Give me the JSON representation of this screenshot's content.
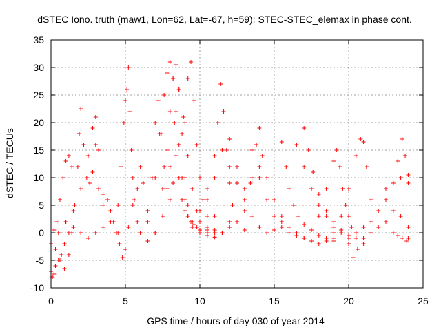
{
  "chart_data": {
    "type": "scatter",
    "title": "dSTEC Iono. truth (maw1, Lon=62, Lat=-67, h=59): STEC-STEC_elemax in phase cont.",
    "xlabel": "GPS time / hours of day 030 of year 2014",
    "ylabel": "dSTEC  / TECUs",
    "xlim": [
      0,
      25
    ],
    "ylim": [
      -10,
      35
    ],
    "xticks": [
      0,
      5,
      10,
      15,
      20,
      25
    ],
    "yticks": [
      -10,
      -5,
      0,
      5,
      10,
      15,
      20,
      25,
      30,
      35
    ],
    "xtick_labels": [
      "0",
      "5",
      "10",
      "15",
      "20",
      "25"
    ],
    "ytick_labels": [
      "-10",
      "-5",
      "0",
      "5",
      "10",
      "15",
      "20",
      "25",
      "30",
      "35"
    ],
    "grid": true,
    "marker": "+",
    "color": "#ff0000",
    "series": [
      {
        "x": [
          0.0,
          0.2,
          0.4,
          0.6,
          0.8,
          1.0,
          1.2,
          1.4
        ],
        "y": [
          -2.0,
          0.5,
          2.0,
          6.0,
          10.0,
          13.0,
          14.0,
          12.0
        ]
      },
      {
        "x": [
          0.0,
          0.1,
          0.2,
          0.3,
          0.5,
          0.7,
          0.9,
          1.2
        ],
        "y": [
          -7.0,
          -8.0,
          -7.5,
          -6.0,
          -5.0,
          -4.0,
          -2.0,
          0.0
        ]
      },
      {
        "x": [
          0.3,
          0.6,
          0.9,
          1.2,
          1.4,
          1.6,
          1.8,
          1.9,
          2.0,
          2.2,
          2.4,
          2.6,
          2.8,
          3.0
        ],
        "y": [
          -3.0,
          -5.0,
          -6.5,
          -4.0,
          0.0,
          5.0,
          12.0,
          18.0,
          22.5,
          16.0,
          10.0,
          9.0,
          11.0,
          16.0
        ]
      },
      {
        "x": [
          1.0,
          1.5,
          2.0,
          2.5,
          2.8,
          3.0,
          3.2,
          3.5
        ],
        "y": [
          2.0,
          4.0,
          8.0,
          14.0,
          19.0,
          21.0,
          15.0,
          5.0
        ]
      },
      {
        "x": [
          0.5,
          1.0,
          1.5,
          2.0,
          2.5,
          3.0,
          3.5,
          4.0,
          4.5
        ],
        "y": [
          0.0,
          2.0,
          1.0,
          0.0,
          -1.0,
          0.0,
          1.0,
          2.0,
          0.0
        ]
      },
      {
        "x": [
          3.2,
          3.5,
          3.8,
          4.0,
          4.2,
          4.4,
          4.6,
          4.8,
          5.0,
          5.2
        ],
        "y": [
          8.0,
          7.0,
          6.0,
          4.0,
          2.0,
          0.0,
          -2.0,
          -4.5,
          -3.0,
          1.0
        ]
      },
      {
        "x": [
          4.5,
          4.7,
          4.9,
          5.0,
          5.1,
          5.2,
          5.3,
          5.4,
          5.5,
          5.6,
          5.8,
          6.0,
          6.5,
          7.0,
          7.5
        ],
        "y": [
          5.0,
          12.0,
          20.0,
          24.0,
          26.0,
          30.0,
          22.0,
          15.0,
          10.0,
          6.0,
          2.0,
          0.0,
          -1.5,
          0.0,
          3.0
        ]
      },
      {
        "x": [
          5.5,
          5.8,
          6.0,
          6.2,
          6.5,
          7.0
        ],
        "y": [
          5.0,
          8.0,
          12.0,
          9.0,
          4.0,
          0.0
        ]
      },
      {
        "x": [
          6.5,
          6.8,
          7.0,
          7.2,
          7.4,
          7.6,
          7.8,
          8.0,
          8.2,
          8.4,
          8.6,
          8.8,
          9.0,
          9.2,
          9.4,
          9.6,
          9.8,
          10.0,
          10.5,
          11.0
        ],
        "y": [
          2.0,
          10.0,
          20.0,
          24.0,
          18.0,
          12.0,
          8.0,
          6.0,
          9.0,
          14.0,
          10.0,
          6.0,
          4.0,
          3.0,
          2.0,
          1.5,
          1.0,
          0.5,
          1.0,
          3.0
        ]
      },
      {
        "x": [
          7.0,
          7.3,
          7.6,
          7.8,
          8.0,
          8.2,
          8.4,
          8.6,
          8.8,
          9.0,
          9.2,
          9.5,
          10.0,
          10.5
        ],
        "y": [
          10.0,
          18.0,
          25.0,
          29.0,
          31.0,
          28.0,
          22.0,
          16.0,
          10.0,
          6.0,
          3.0,
          1.0,
          0.0,
          0.5
        ]
      },
      {
        "x": [
          7.5,
          7.8,
          8.0,
          8.2,
          8.4,
          8.6,
          8.8,
          9.0,
          9.2,
          9.5,
          10.0,
          10.5,
          11.0
        ],
        "y": [
          8.0,
          15.0,
          22.0,
          28.0,
          30.5,
          26.0,
          18.0,
          10.0,
          5.0,
          2.0,
          0.0,
          -0.5,
          0.0
        ]
      },
      {
        "x": [
          8.0,
          8.3,
          8.6,
          8.9,
          9.2,
          9.5,
          9.8,
          10.0,
          10.5,
          11.0,
          11.5,
          12.0
        ],
        "y": [
          12.0,
          20.0,
          26.0,
          21.0,
          14.0,
          8.0,
          4.0,
          2.0,
          0.0,
          -0.8,
          0.0,
          2.0
        ]
      },
      {
        "x": [
          9.0,
          9.2,
          9.4,
          9.6,
          9.8,
          10.0,
          10.2,
          10.5,
          11.0,
          11.5,
          12.0
        ],
        "y": [
          20.0,
          28.0,
          31.0,
          24.0,
          16.0,
          10.0,
          6.0,
          3.0,
          0.5,
          0.0,
          1.0
        ]
      },
      {
        "x": [
          10.0,
          10.5,
          11.0,
          11.2,
          11.4,
          11.6,
          11.8,
          12.0,
          12.2,
          12.5,
          13.0
        ],
        "y": [
          4.0,
          8.0,
          14.0,
          20.0,
          27.0,
          22.0,
          15.0,
          9.0,
          5.0,
          2.0,
          0.5
        ]
      },
      {
        "x": [
          10.5,
          11.0,
          11.5,
          12.0,
          12.5,
          13.0,
          13.5,
          14.0
        ],
        "y": [
          6.0,
          10.0,
          15.0,
          17.0,
          12.0,
          8.0,
          10.0,
          12.0
        ]
      },
      {
        "x": [
          12.0,
          12.5,
          13.0,
          13.5,
          14.0,
          14.5,
          15.0,
          15.5
        ],
        "y": [
          12.0,
          9.0,
          6.0,
          3.0,
          1.0,
          0.0,
          0.5,
          2.0
        ]
      },
      {
        "x": [
          13.0,
          13.4,
          13.8,
          14.0,
          14.2,
          14.5,
          15.0,
          15.5,
          16.0,
          16.5,
          17.0
        ],
        "y": [
          4.0,
          9.0,
          16.0,
          19.0,
          14.0,
          10.0,
          6.0,
          3.0,
          1.0,
          0.0,
          -1.0
        ]
      },
      {
        "x": [
          13.5,
          14.0,
          14.5,
          15.0,
          15.5,
          16.0,
          16.5,
          17.0,
          17.5,
          18.0,
          18.5,
          19.0
        ],
        "y": [
          15.0,
          10.0,
          6.0,
          3.0,
          1.0,
          0.0,
          -0.5,
          -1.0,
          -1.5,
          -2.0,
          -1.5,
          -1.0
        ]
      },
      {
        "x": [
          15.5,
          15.8,
          16.0,
          16.3,
          16.6,
          17.0,
          17.5,
          18.0,
          18.5,
          19.0
        ],
        "y": [
          16.5,
          12.0,
          8.0,
          5.0,
          3.0,
          1.5,
          0.5,
          -0.5,
          -1.0,
          -1.5
        ]
      },
      {
        "x": [
          16.5,
          17.0,
          17.5,
          18.0,
          18.5,
          19.0,
          19.5,
          20.0
        ],
        "y": [
          16.0,
          12.0,
          8.0,
          5.0,
          3.0,
          1.0,
          0.0,
          -1.0
        ]
      },
      {
        "x": [
          17.0,
          17.3,
          17.6,
          18.0,
          18.5,
          19.0,
          19.5,
          20.0,
          20.5,
          21.0
        ],
        "y": [
          19.0,
          15.0,
          11.0,
          7.0,
          4.0,
          2.0,
          0.5,
          -0.5,
          -1.0,
          -2.0
        ]
      },
      {
        "x": [
          18.0,
          18.5,
          19.0,
          19.2,
          19.4,
          19.6,
          19.8,
          20.0,
          20.2,
          20.5
        ],
        "y": [
          3.0,
          8.0,
          13.0,
          15.0,
          12.0,
          8.0,
          5.0,
          3.0,
          1.0,
          0.0
        ]
      },
      {
        "x": [
          19.0,
          19.5,
          20.0,
          20.5,
          20.8,
          21.0,
          21.2,
          21.5
        ],
        "y": [
          0.0,
          3.0,
          8.0,
          14.0,
          17.0,
          16.5,
          12.0,
          6.0
        ]
      },
      {
        "x": [
          20.0,
          20.3,
          20.6,
          21.0,
          21.5,
          22.0,
          22.5,
          23.0,
          23.5,
          24.0
        ],
        "y": [
          -2.0,
          -4.5,
          -3.0,
          -1.0,
          0.0,
          1.0,
          2.0,
          4.0,
          3.0,
          1.0
        ]
      },
      {
        "x": [
          21.0,
          21.5,
          22.0,
          22.5,
          23.0,
          23.3,
          23.6,
          23.8,
          24.0
        ],
        "y": [
          1.0,
          2.0,
          4.0,
          6.0,
          9.0,
          13.0,
          17.0,
          14.0,
          9.0
        ]
      },
      {
        "x": [
          22.5,
          23.0,
          23.5,
          24.0
        ],
        "y": [
          8.0,
          9.0,
          10.0,
          10.5
        ]
      },
      {
        "x": [
          23.0,
          23.3,
          23.6,
          23.9,
          24.0
        ],
        "y": [
          0.0,
          -0.5,
          -1.0,
          -1.5,
          -1.0
        ]
      }
    ]
  }
}
